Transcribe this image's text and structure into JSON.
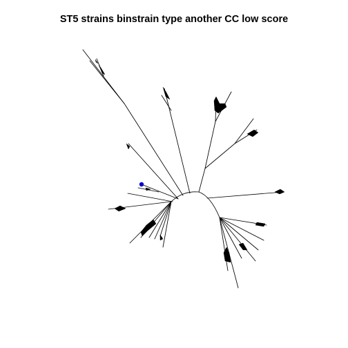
{
  "title": "ST5 strains binstrain type another CC low score",
  "colors": {
    "background": "#ffffff",
    "branch": "#000000",
    "highlight_tip": "#0000cc"
  },
  "tree": {
    "layout": "unrooted",
    "highlighted_tip_count": 1
  }
}
